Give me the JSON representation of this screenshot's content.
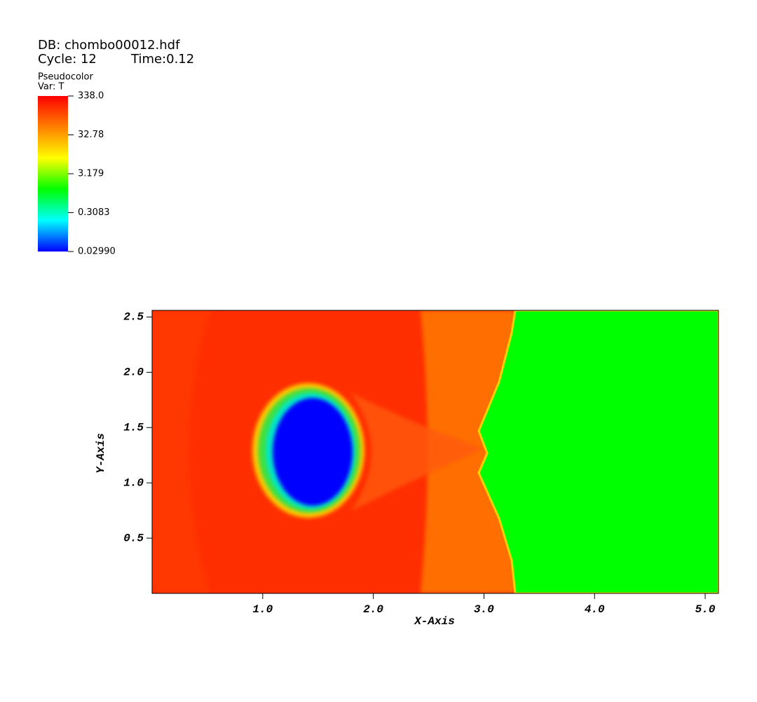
{
  "chart_data": {
    "type": "pseudocolor",
    "database": "DB: chombo00012.hdf",
    "cycle": "Cycle: 12",
    "time": "Time:0.12",
    "plot_name": "Pseudocolor",
    "variable": "Var: T",
    "colorbar": {
      "log": true,
      "range": [
        0.0299,
        338
      ],
      "ticks": [
        {
          "value": 338,
          "label": "338.0"
        },
        32.78,
        3.179,
        0.3083,
        {
          "value": 0.0299,
          "label": "0.02990"
        }
      ],
      "colors": [
        "#0000ff",
        "#00ffff",
        "#00ff00",
        "#ffff00",
        "#ff8000",
        "#ff0000"
      ]
    },
    "x_label": "X-Axis",
    "y_label": "Y-Axis",
    "xlim": [
      0,
      5.12
    ],
    "ylim": [
      0,
      2.56
    ],
    "xticks": [
      {
        "value": 1,
        "label": "1.0"
      },
      {
        "value": 2,
        "label": "2.0"
      },
      {
        "value": 3,
        "label": "3.0"
      },
      {
        "value": 4,
        "label": "4.0"
      },
      {
        "value": 5,
        "label": "5.0"
      }
    ],
    "yticks": [
      0.5,
      {
        "value": 1,
        "label": "1.0"
      },
      1.5,
      {
        "value": 2,
        "label": "2.0"
      },
      2.5
    ]
  }
}
